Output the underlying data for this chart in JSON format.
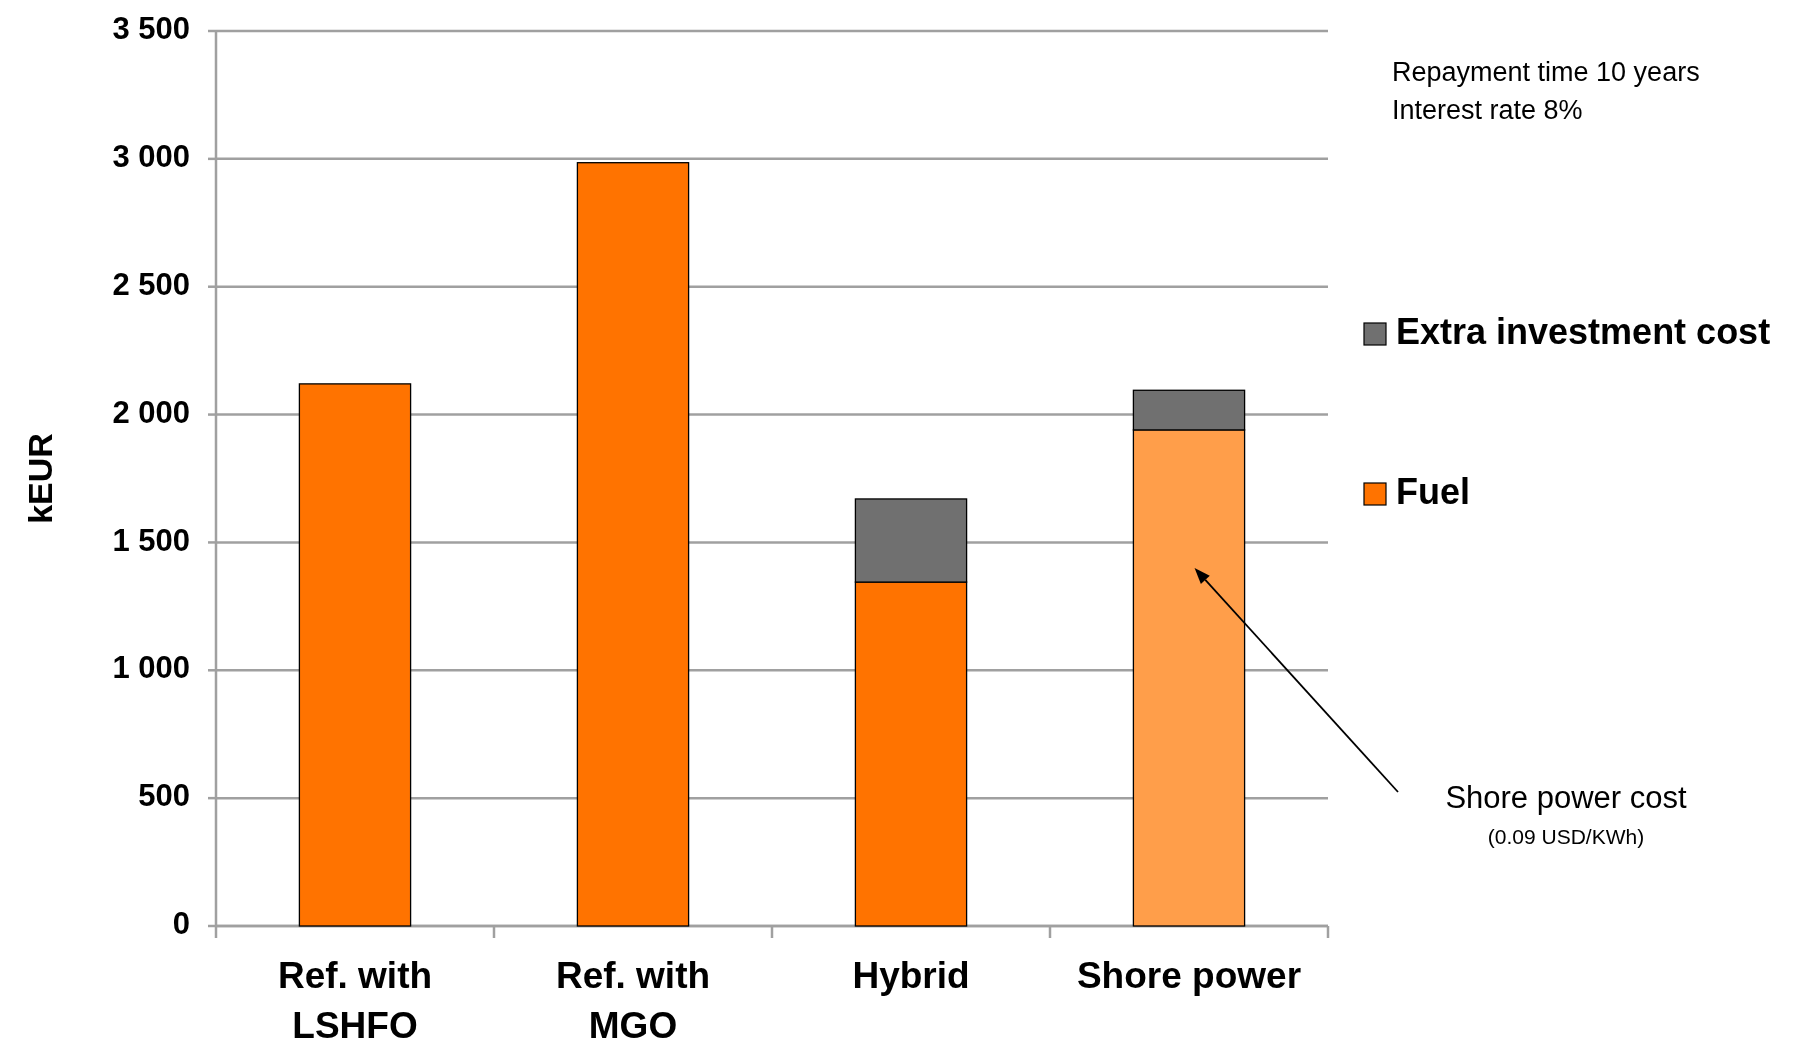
{
  "chart_data": {
    "type": "bar",
    "ylabel": "kEUR",
    "categories": [
      "Ref. with LSHFO",
      "Ref. with MGO",
      "Hybrid",
      "Shore power"
    ],
    "stacked": true,
    "ylim": [
      0,
      3500
    ],
    "yticks": [
      {
        "value": 0,
        "label": "0"
      },
      {
        "value": 500,
        "label": "500"
      },
      {
        "value": 1000,
        "label": "1 000"
      },
      {
        "value": 1500,
        "label": "1 500"
      },
      {
        "value": 2000,
        "label": "2 000"
      },
      {
        "value": 2500,
        "label": "2 500"
      },
      {
        "value": 3000,
        "label": "3 000"
      },
      {
        "value": 3500,
        "label": "3 500"
      }
    ],
    "grid": "y",
    "legend": "right",
    "series": [
      {
        "name": "Fuel",
        "color": "#ff7300",
        "colors": [
          "#ff7300",
          "#ff7300",
          "#ff7300",
          "#ff9e4a"
        ],
        "values": [
          2120,
          2985,
          1345,
          1940
        ]
      },
      {
        "name": "Extra investment cost",
        "color": "#707070",
        "values": [
          null,
          null,
          325,
          155
        ]
      }
    ],
    "annotations": [
      "Repayment time 10 years",
      "Interest rate 8%",
      "Shore power cost",
      "(0.09 USD/KWh)"
    ]
  }
}
